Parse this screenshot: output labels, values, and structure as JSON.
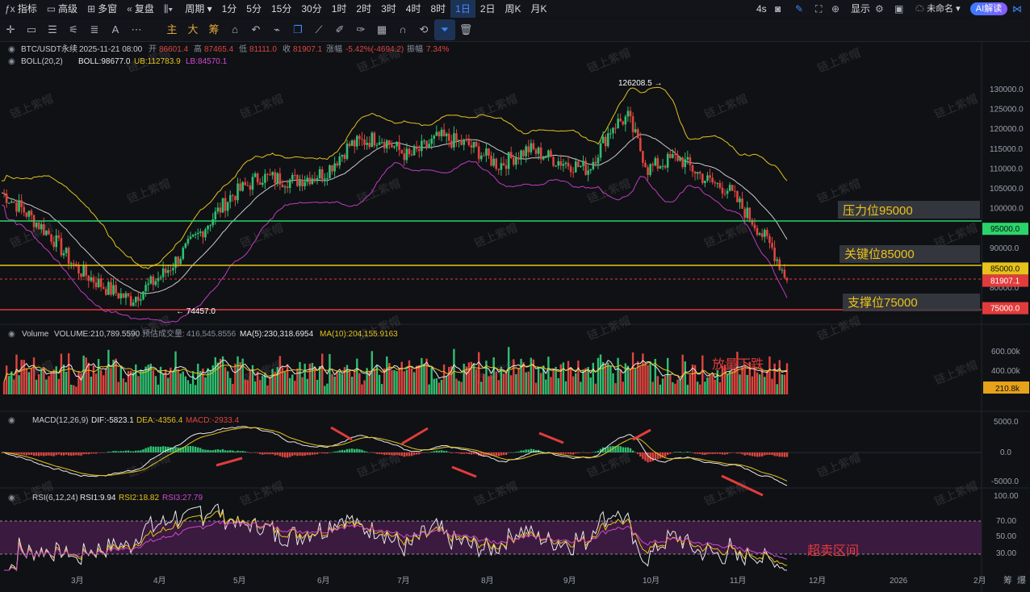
{
  "topbar": {
    "items": [
      "指标",
      "高级",
      "多窗",
      "复盘",
      "",
      "周期",
      "1分",
      "5分",
      "15分",
      "30分",
      "1时",
      "2时",
      "3时",
      "4时",
      "8时",
      "1日",
      "2日",
      "周K",
      "月K"
    ],
    "active": "1日",
    "right": {
      "interval": "4s",
      "show_label": "显示",
      "layout_name": "未命名",
      "ai_label": "AI解读"
    }
  },
  "toolbar2": {
    "tools": [
      "cursor-icon",
      "rect-icon",
      "lines-icon",
      "fib-icon",
      "list-icon",
      "text-icon",
      "more-icon"
    ],
    "indicators": [
      "主",
      "大",
      "筹"
    ],
    "tools2": [
      "camera-icon",
      "undo-icon",
      "lock-icon",
      "copy-icon",
      "ruler-icon",
      "pen-icon",
      "brush-icon",
      "calendar-icon",
      "magnet-icon",
      "filter-icon",
      "trash-icon"
    ]
  },
  "info": {
    "symbol": "BTC/USDT永续",
    "datetime": "2025-11-21 08:00",
    "open_label": "开",
    "open": "86601.4",
    "high_label": "高",
    "high": "87465.4",
    "low_label": "低",
    "low": "81111.0",
    "close_label": "收",
    "close": "81907.1",
    "change_label": "涨幅",
    "change": "-5.42%(-4694.2)",
    "amp_label": "振幅",
    "amp": "7.34%",
    "boll_name": "BOLL(20,2)",
    "boll": "BOLL:98677.0",
    "ub": "UB:112783.9",
    "lb": "LB:84570.1",
    "vol_name": "Volume",
    "vol": "VOLUME:210,789.5590",
    "est_label": "预估成交量:",
    "est": "416,545.8556",
    "ma5": "MA(5):230,318.6954",
    "ma10": "MA(10):204,155.9163",
    "macd_name": "MACD(12,26,9)",
    "dif": "DIF:-5823.1",
    "dea": "DEA:-4356.4",
    "macd": "MACD:-2933.4",
    "rsi_name": "RSI(6,12,24)",
    "rsi1": "RSI1:9.94",
    "rsi2": "RSI2:18.82",
    "rsi3": "RSI3:27.79"
  },
  "price_axis": [
    "130000.0",
    "125000.0",
    "120000.0",
    "115000.0",
    "110000.0",
    "105000.0",
    "100000.0",
    "95000.0",
    "90000.0",
    "85000.0",
    "80000.0"
  ],
  "price_tags": [
    {
      "label": "95000.0",
      "color": "#2bd46a",
      "text_color": "#101010"
    },
    {
      "label": "85000.0",
      "color": "#e6c21a",
      "text_color": "#101010"
    },
    {
      "label": "81907.1",
      "color": "#e23b3b",
      "text_color": "#ffffff"
    },
    {
      "label": "75000.0",
      "color": "#e23b3b",
      "text_color": "#ffffff"
    }
  ],
  "levels": [
    {
      "label": "压力位95000",
      "color": "#2bd46a"
    },
    {
      "label": "关键位85000",
      "color": "#e6c21a"
    },
    {
      "label": "支撑位75000",
      "color": "#e23b3b"
    }
  ],
  "annotations": {
    "high_marker": "126208.5 →",
    "low_marker": "← 74457.0",
    "volume_note": "放量下跌",
    "rsi_note": "超卖区间"
  },
  "vol_axis": [
    "600.00k",
    "400.00k"
  ],
  "vol_tag": "210.8k",
  "macd_axis": [
    "5000.0",
    "0.0",
    "-5000.0"
  ],
  "rsi_axis": [
    "100.00",
    "70.00",
    "50.00",
    "30.00"
  ],
  "time_axis": [
    "3月",
    "4月",
    "5月",
    "6月",
    "7月",
    "8月",
    "9月",
    "10月",
    "11月",
    "12月",
    "2026",
    "2月"
  ],
  "watermark": "链上紫帽",
  "corner_text": [
    "筹",
    "爆"
  ],
  "colors": {
    "up": "#2fbf71",
    "down": "#e0443e",
    "boll_mid": "#c9c9c9",
    "boll_up": "#e6c21a",
    "boll_lb": "#c03cc0"
  },
  "chart_data": {
    "type": "candlestick",
    "description": "BTC/USDT perpetual daily",
    "anchors": [
      [
        0,
        104000
      ],
      [
        8,
        100000
      ],
      [
        20,
        93000
      ],
      [
        30,
        85000
      ],
      [
        42,
        80000
      ],
      [
        52,
        77000
      ],
      [
        58,
        80000
      ],
      [
        66,
        84000
      ],
      [
        80,
        94000
      ],
      [
        92,
        103000
      ],
      [
        104,
        108000
      ],
      [
        118,
        107000
      ],
      [
        130,
        109000
      ],
      [
        140,
        116000
      ],
      [
        152,
        118000
      ],
      [
        164,
        113000
      ],
      [
        176,
        118000
      ],
      [
        188,
        116000
      ],
      [
        200,
        111000
      ],
      [
        212,
        115000
      ],
      [
        224,
        112000
      ],
      [
        236,
        110000
      ],
      [
        246,
        121000
      ],
      [
        252,
        123000
      ],
      [
        260,
        110000
      ],
      [
        272,
        113000
      ],
      [
        284,
        107000
      ],
      [
        292,
        105000
      ],
      [
        302,
        97000
      ],
      [
        310,
        90000
      ],
      [
        316,
        82000
      ]
    ]
  }
}
